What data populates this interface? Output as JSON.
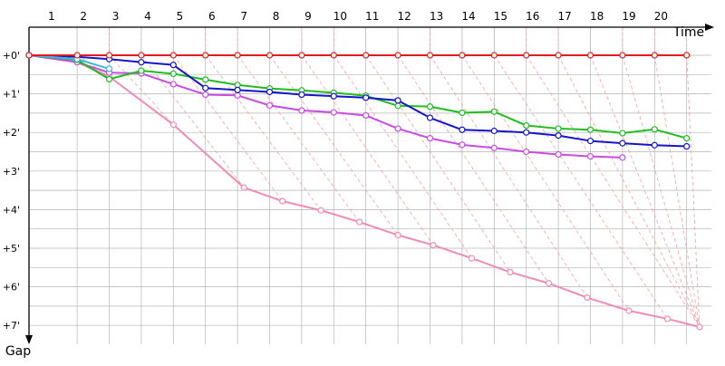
{
  "chart_data": {
    "type": "line",
    "title": "",
    "xlabel": "Time",
    "ylabel": "Gap",
    "x_ticks": [
      "1",
      "2",
      "3",
      "4",
      "5",
      "6",
      "7",
      "8",
      "9",
      "10",
      "11",
      "12",
      "13",
      "14",
      "15",
      "16",
      "17",
      "18",
      "19",
      "20"
    ],
    "y_ticks": [
      "+0'",
      "+1'",
      "+2'",
      "+3'",
      "+4'",
      "+5'",
      "+6'",
      "+7'"
    ],
    "ylim": [
      0,
      7
    ],
    "grid": true,
    "colors": {
      "grid": "#b4b4b4",
      "diag": "#f4a0a0",
      "red": "#e31b1b",
      "blue": "#1414c8",
      "green": "#1fbd1f",
      "magenta": "#c94be0",
      "pink": "#f08cb4",
      "cyan": "#40b8e0"
    },
    "series": [
      {
        "color": "red",
        "x": [
          0,
          1.5,
          2.5,
          3.5,
          4.5,
          5.5,
          6.5,
          7.5,
          8.5,
          9.5,
          10.5,
          11.5,
          12.5,
          13.5,
          14.5,
          15.5,
          16.5,
          17.5,
          18.5,
          19.5,
          20.5
        ],
        "y": [
          0,
          0,
          0,
          0,
          0,
          0,
          0,
          0,
          0,
          0,
          0,
          0,
          0,
          0,
          0,
          0,
          0,
          0,
          0,
          0,
          0
        ]
      },
      {
        "color": "pink",
        "x": [
          0,
          1.5,
          2.5,
          4.5,
          6.7,
          7.9,
          9.1,
          10.3,
          11.5,
          12.6,
          13.8,
          15.0,
          16.2,
          17.4,
          18.7,
          19.9,
          20.9
        ],
        "y": [
          0,
          0.18,
          0.55,
          1.8,
          3.43,
          3.78,
          4.02,
          4.32,
          4.66,
          4.92,
          5.26,
          5.62,
          5.91,
          6.28,
          6.62,
          6.83,
          7.04
        ]
      },
      {
        "color": "magenta",
        "x": [
          0,
          1.5,
          2.5,
          3.5,
          4.5,
          5.5,
          6.5,
          7.5,
          8.5,
          9.5,
          10.5,
          11.5,
          12.5,
          13.5,
          14.5,
          15.5,
          16.5,
          17.5,
          18.5
        ],
        "y": [
          0,
          0.18,
          0.45,
          0.47,
          0.75,
          1.02,
          1.04,
          1.3,
          1.43,
          1.48,
          1.56,
          1.9,
          2.15,
          2.32,
          2.4,
          2.5,
          2.57,
          2.62,
          2.65
        ]
      },
      {
        "color": "green",
        "x": [
          0,
          1.5,
          2.5,
          3.5,
          4.5,
          5.5,
          6.5,
          7.5,
          8.5,
          9.5,
          10.5,
          11.5,
          12.5,
          13.5,
          14.5,
          15.5,
          16.5,
          17.5,
          18.5,
          19.5,
          20.5
        ],
        "y": [
          0,
          0.12,
          0.62,
          0.4,
          0.48,
          0.63,
          0.77,
          0.86,
          0.91,
          0.97,
          1.05,
          1.31,
          1.33,
          1.49,
          1.46,
          1.82,
          1.9,
          1.93,
          2.02,
          1.92,
          2.15
        ]
      },
      {
        "color": "blue",
        "x": [
          0,
          1.5,
          2.5,
          3.5,
          4.5,
          5.5,
          6.5,
          7.5,
          8.5,
          9.5,
          10.5,
          11.5,
          12.5,
          13.5,
          14.5,
          15.5,
          16.5,
          17.5,
          18.5,
          19.5,
          20.5
        ],
        "y": [
          0,
          0.04,
          0.1,
          0.18,
          0.25,
          0.85,
          0.9,
          0.95,
          1.02,
          1.06,
          1.1,
          1.17,
          1.62,
          1.93,
          1.96,
          2.0,
          2.08,
          2.22,
          2.28,
          2.33,
          2.36
        ]
      },
      {
        "color": "cyan",
        "x": [
          0,
          1.5,
          2.5
        ],
        "y": [
          0,
          0.1,
          0.35
        ]
      }
    ]
  }
}
